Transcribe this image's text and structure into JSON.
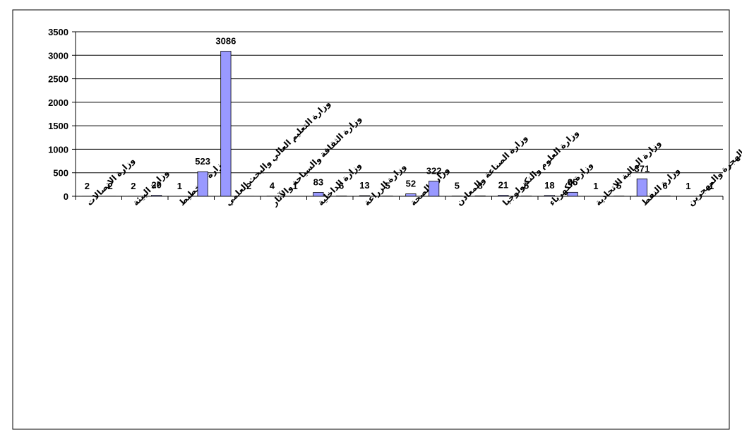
{
  "chart_data": {
    "type": "bar",
    "categories": [
      "وزارة الاتصالات",
      null,
      "وزارة البيئة",
      null,
      "وزارة التخطيط",
      null,
      "وزارة التعليم العالي والبحث العلمي",
      null,
      "وزارة الثقافة والسياحة والآثار",
      null,
      "وزارة الداخلية",
      null,
      "وزارة الزراعة",
      null,
      "وزارة الصحة",
      null,
      "وزارة الصناعة والمعادن",
      null,
      "وزارة العلوم والتكنولوجيا",
      null,
      "وزارة الكهرباء",
      null,
      "وزارة المالية الاتحادية",
      null,
      "وزارة النفط",
      null,
      "وزارة الهجرة والمهجرين",
      null
    ],
    "values": [
      2,
      2,
      2,
      20,
      1,
      523,
      3086,
      2,
      4,
      1,
      83,
      6,
      13,
      5,
      52,
      322,
      5,
      8,
      21,
      5,
      18,
      85,
      1,
      5,
      371,
      6,
      1,
      1
    ],
    "color": "#9999ff",
    "ylim": [
      0,
      3500
    ],
    "yticks": [
      0,
      500,
      1000,
      1500,
      2000,
      2500,
      3000,
      3500
    ],
    "grid": true
  }
}
